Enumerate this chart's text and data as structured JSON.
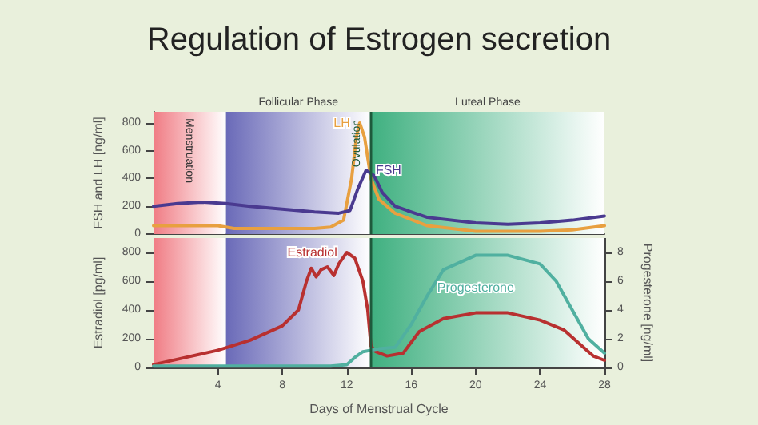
{
  "chart_data": [
    {
      "type": "line",
      "title": "Regulation of Estrogen secretion",
      "ylabel": "FSH and LH [ng/ml]",
      "xlim": [
        0,
        28
      ],
      "ylim": [
        0,
        880
      ],
      "yticks": [
        0,
        200,
        400,
        600,
        800
      ],
      "tick_labels": "y",
      "series": [
        {
          "name": "LH",
          "color": "#e8a040",
          "x": [
            0,
            2,
            4,
            5,
            8,
            10,
            11,
            11.8,
            12.3,
            12.6,
            12.8,
            13.1,
            13.5,
            14,
            15,
            17,
            20,
            24,
            26,
            28
          ],
          "values": [
            60,
            60,
            60,
            40,
            40,
            40,
            50,
            100,
            400,
            700,
            800,
            700,
            400,
            250,
            150,
            60,
            20,
            20,
            30,
            60
          ]
        },
        {
          "name": "FSH",
          "color": "#4a3a90",
          "x": [
            0,
            1.5,
            3,
            4.5,
            6,
            8,
            10,
            11.5,
            12.2,
            12.7,
            13.2,
            13.7,
            14.2,
            15,
            17,
            20,
            22,
            24,
            26,
            28
          ],
          "values": [
            200,
            220,
            230,
            220,
            200,
            180,
            160,
            150,
            170,
            330,
            460,
            420,
            300,
            200,
            120,
            80,
            70,
            80,
            100,
            130
          ]
        }
      ],
      "bands": [
        {
          "axis": "x",
          "from": 0,
          "to": 4.5,
          "color": "#f07c84"
        },
        {
          "axis": "x",
          "from": 4.5,
          "to": 13.5,
          "label": "Follicular Phase",
          "color": "#6a6ab8"
        },
        {
          "axis": "x",
          "from": 13.5,
          "to": 28,
          "label": "Luteal Phase",
          "color": "#3fb080"
        }
      ],
      "ref_lines": [
        {
          "axis": "x",
          "value": 13.5,
          "label": "Ovulation",
          "color": "#1e5a3c"
        }
      ],
      "annotations": [
        "Menstruation"
      ]
    },
    {
      "type": "line",
      "xlabel": "Days of Menstrual Cycle",
      "ylabel": "Estradiol [pg/ml]",
      "y2label": "Progesterone [ng/ml]",
      "xlim": [
        0,
        28
      ],
      "xticks": [
        4,
        8,
        12,
        16,
        20,
        24,
        28
      ],
      "ylim": [
        0,
        900
      ],
      "yticks": [
        0,
        200,
        400,
        600,
        800
      ],
      "y2lim": [
        0,
        9
      ],
      "y2ticks": [
        0,
        2,
        4,
        6,
        8
      ],
      "series": [
        {
          "name": "Estradiol",
          "color": "#b83030",
          "x": [
            0,
            2,
            4,
            6,
            8,
            9,
            9.5,
            9.8,
            10.1,
            10.4,
            10.8,
            11.2,
            11.5,
            12,
            12.5,
            13,
            13.3,
            13.5,
            13.8,
            14.5,
            15.5,
            16.5,
            18,
            20,
            22,
            24,
            25.5,
            26.5,
            27.3,
            28
          ],
          "values": [
            20,
            70,
            120,
            190,
            290,
            400,
            600,
            690,
            630,
            680,
            700,
            640,
            720,
            800,
            760,
            600,
            400,
            150,
            110,
            80,
            100,
            250,
            340,
            380,
            380,
            330,
            260,
            160,
            80,
            50
          ]
        },
        {
          "name": "Progesterone",
          "color": "#50b0a0",
          "axis": "y2",
          "x": [
            0,
            4,
            8,
            11,
            12,
            12.5,
            13,
            14,
            15,
            16,
            17,
            18,
            20,
            22,
            24,
            25,
            26,
            27,
            28
          ],
          "values": [
            0.1,
            0.1,
            0.1,
            0.1,
            0.2,
            0.7,
            1.1,
            1.3,
            1.4,
            3,
            5,
            6.8,
            7.8,
            7.8,
            7.2,
            6,
            4,
            2,
            1
          ]
        }
      ],
      "bands": [
        {
          "axis": "x",
          "from": 0,
          "to": 4.5,
          "color": "#f07c84"
        },
        {
          "axis": "x",
          "from": 4.5,
          "to": 13.5,
          "color": "#6a6ab8"
        },
        {
          "axis": "x",
          "from": 13.5,
          "to": 28,
          "color": "#3fb080"
        }
      ],
      "ref_lines": [
        {
          "axis": "x",
          "value": 13.5,
          "color": "#1e5a3c"
        }
      ]
    }
  ]
}
